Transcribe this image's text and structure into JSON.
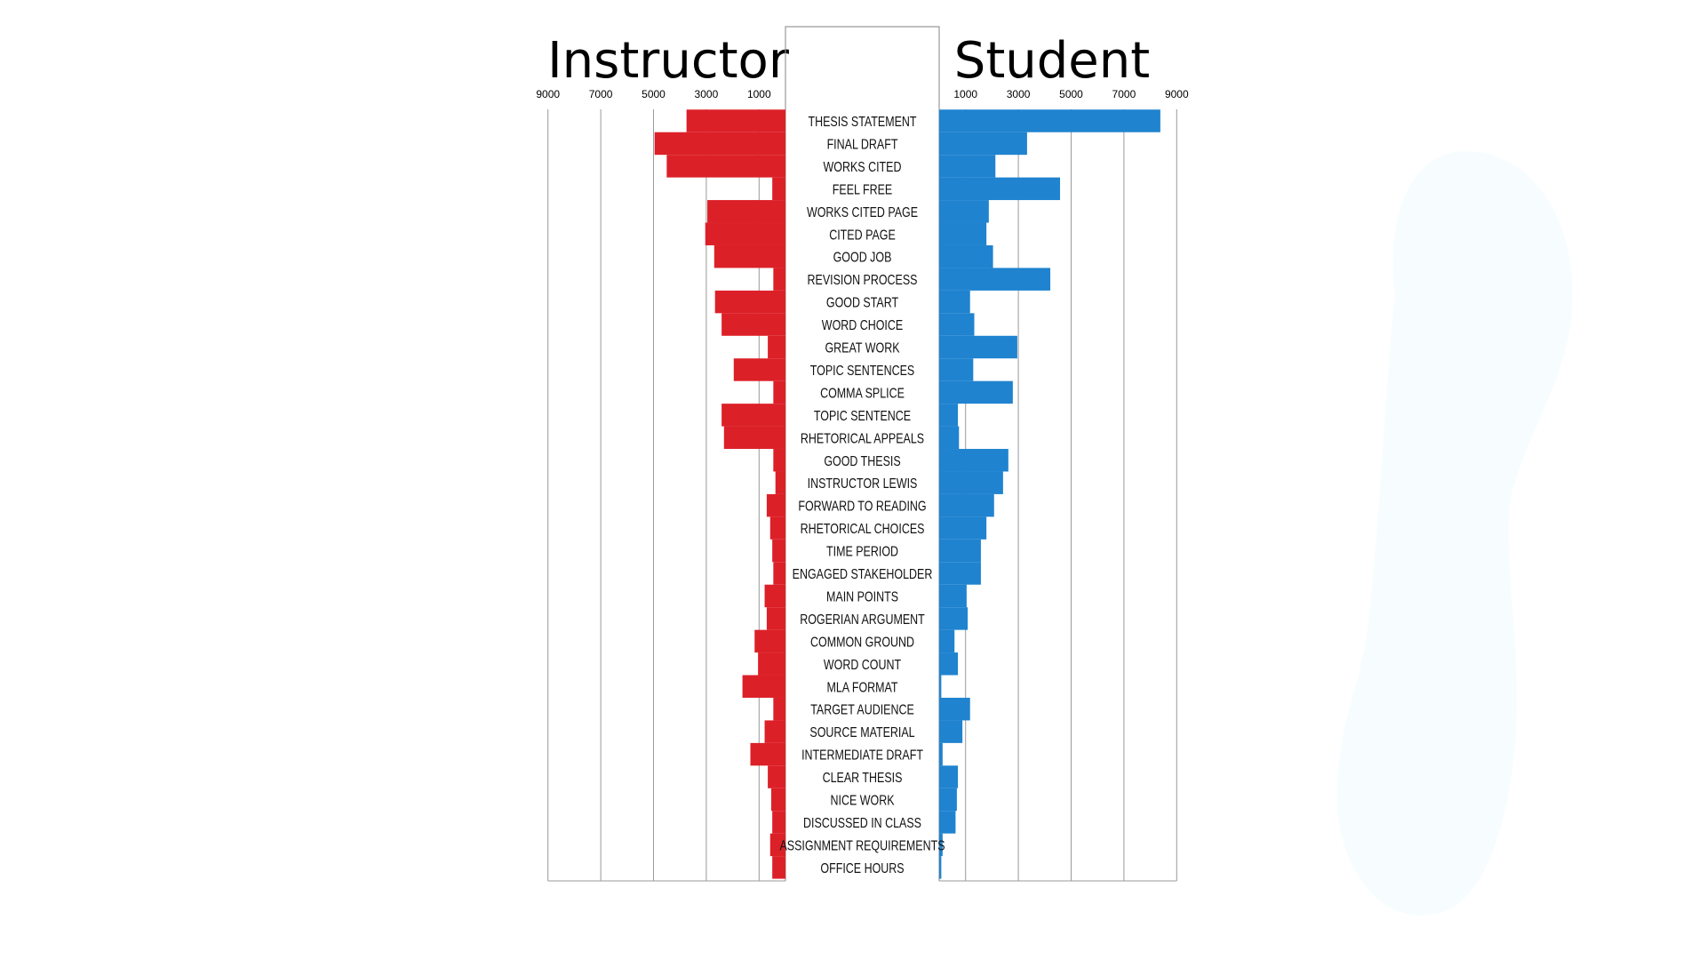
{
  "chart_data": {
    "type": "bar",
    "orientation": "horizontal-butterfly",
    "colors": {
      "instructor": "#dc2028",
      "student": "#1f83cf",
      "grid": "#9a9a9a"
    },
    "xlim": [
      0,
      9000
    ],
    "ticks": [
      1000,
      3000,
      5000,
      7000,
      9000
    ],
    "tick_labels": [
      "1000",
      "3000",
      "5000",
      "7000",
      "9000"
    ],
    "grid": true,
    "categories": [
      "THESIS STATEMENT",
      "FINAL DRAFT",
      "WORKS CITED",
      "FEEL FREE",
      "WORKS CITED PAGE",
      "CITED PAGE",
      "GOOD JOB",
      "REVISION PROCESS",
      "GOOD START",
      "WORD CHOICE",
      "GREAT WORK",
      "TOPIC SENTENCES",
      "COMMA SPLICE",
      "TOPIC SENTENCE",
      "RHETORICAL APPEALS",
      "GOOD THESIS",
      "INSTRUCTOR LEWIS",
      "FORWARD TO READING",
      "RHETORICAL CHOICES",
      "TIME PERIOD",
      "ENGAGED STAKEHOLDER",
      "MAIN POINTS",
      "ROGERIAN ARGUMENT",
      "COMMON GROUND",
      "WORD COUNT",
      "MLA FORMAT",
      "TARGET AUDIENCE",
      "SOURCE MATERIAL",
      "INTERMEDIATE DRAFT",
      "CLEAR THESIS",
      "NICE WORK",
      "DISCUSSED IN CLASS",
      "ASSIGNMENT REQUIREMENTS",
      "OFFICE HOURS"
    ],
    "series": [
      {
        "name": "Instructor",
        "values": [
          3750,
          4960,
          4500,
          500,
          2960,
          3040,
          2700,
          460,
          2670,
          2420,
          670,
          1960,
          460,
          2420,
          2330,
          460,
          380,
          710,
          580,
          500,
          460,
          790,
          710,
          1170,
          1040,
          1630,
          460,
          790,
          1330,
          670,
          540,
          500,
          580,
          500
        ]
      },
      {
        "name": "Student",
        "values": [
          8380,
          3330,
          2130,
          4580,
          1880,
          1790,
          2040,
          4210,
          1170,
          1330,
          2960,
          1290,
          2790,
          710,
          750,
          2620,
          2420,
          2080,
          1790,
          1580,
          1580,
          1040,
          1080,
          580,
          710,
          80,
          1170,
          880,
          130,
          710,
          670,
          620,
          130,
          80
        ]
      }
    ]
  }
}
